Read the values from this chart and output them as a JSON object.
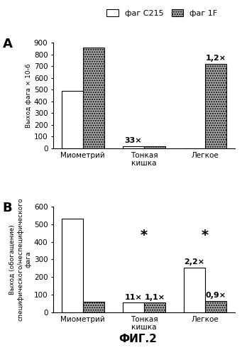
{
  "panel_A": {
    "title": "A",
    "categories": [
      "Миометрий",
      "Тонкая\nкишка",
      "Легкое"
    ],
    "bar_width": 0.35,
    "C215": [
      490,
      20,
      0
    ],
    "1F": [
      860,
      20,
      720
    ],
    "labels_C215": [
      "",
      "33×",
      ""
    ],
    "labels_1F": [
      "",
      "",
      "1,2×"
    ],
    "ylim": [
      0,
      900
    ],
    "yticks": [
      0,
      100,
      200,
      300,
      400,
      500,
      600,
      700,
      800,
      900
    ],
    "ylabel": "Выход фага × 10-6"
  },
  "panel_B": {
    "title": "B",
    "categories": [
      "Миометрий",
      "Тонкая\nкишка",
      "Легкое"
    ],
    "bar_width": 0.35,
    "C215": [
      530,
      55,
      255
    ],
    "1F": [
      60,
      55,
      65
    ],
    "labels_C215": [
      "",
      "11×",
      "2,2×"
    ],
    "labels_1F": [
      "",
      "1,1×",
      "0,9×"
    ],
    "stars": [
      1,
      2
    ],
    "ylim": [
      0,
      600
    ],
    "yticks": [
      0,
      100,
      200,
      300,
      400,
      500,
      600
    ],
    "ylabel": "Выход (обогащение)\nспецифического/неспецифического\nфага"
  },
  "legend": {
    "C215_label": "фаг C215",
    "1F_label": "фаг 1F"
  },
  "figure_title": "ФИГ.2",
  "color_C215": "white",
  "color_1F": "#aaaaaa",
  "hatch_1F": ".....",
  "edgecolor": "black",
  "font_size_ticks": 7.5,
  "font_size_annot": 8,
  "font_size_panel": 13,
  "font_size_fig_title": 11,
  "font_size_legend": 8,
  "font_size_ylabel": 6.5
}
